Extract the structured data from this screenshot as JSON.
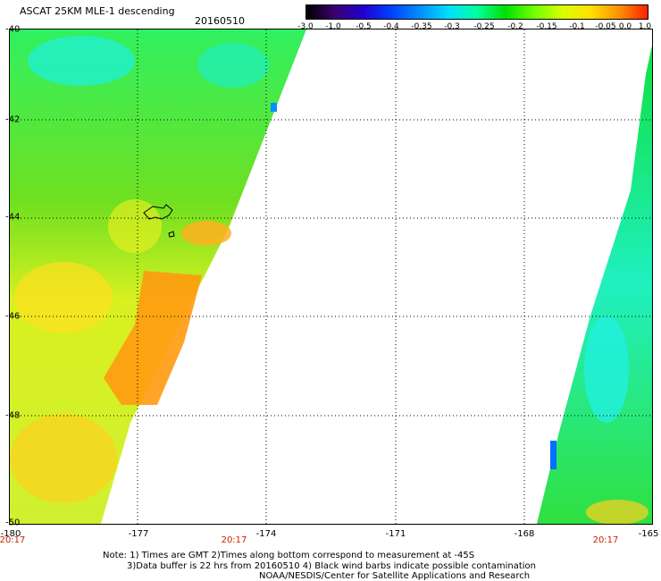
{
  "title": "ASCAT 25KM MLE-1 descending",
  "date": "20160510",
  "colorbar": {
    "labels": [
      "-3.0",
      "-1.0",
      "-0.5",
      "-0.4",
      "-0.35",
      "-0.3",
      "-0.25",
      "-0.2",
      "-0.15",
      "-0.1",
      "-0.05",
      "0.0",
      "1.0"
    ],
    "colors": [
      "#000000",
      "#3a0070",
      "#2200d0",
      "#0040ff",
      "#0090ff",
      "#00e0ff",
      "#00ffa0",
      "#00e000",
      "#70ff00",
      "#d8ff00",
      "#ffe000",
      "#ff9000",
      "#ff2000"
    ]
  },
  "map": {
    "lat_labels": [
      "-40",
      "-42",
      "-44",
      "-46",
      "-48",
      "-50"
    ],
    "lon_labels": [
      "-180",
      "-177",
      "-174",
      "-171",
      "-168",
      "-165"
    ],
    "time_labels": [
      "20:17",
      "20:17",
      "20:17"
    ]
  },
  "notes": [
    "Note: 1) Times are GMT 2)Times along bottom correspond to measurement at -45S",
    "3)Data buffer is 22 hrs from 20160510 4) Black wind barbs indicate possible contamination",
    "NOAA/NESDIS/Center for Satellite Applications and Research"
  ]
}
